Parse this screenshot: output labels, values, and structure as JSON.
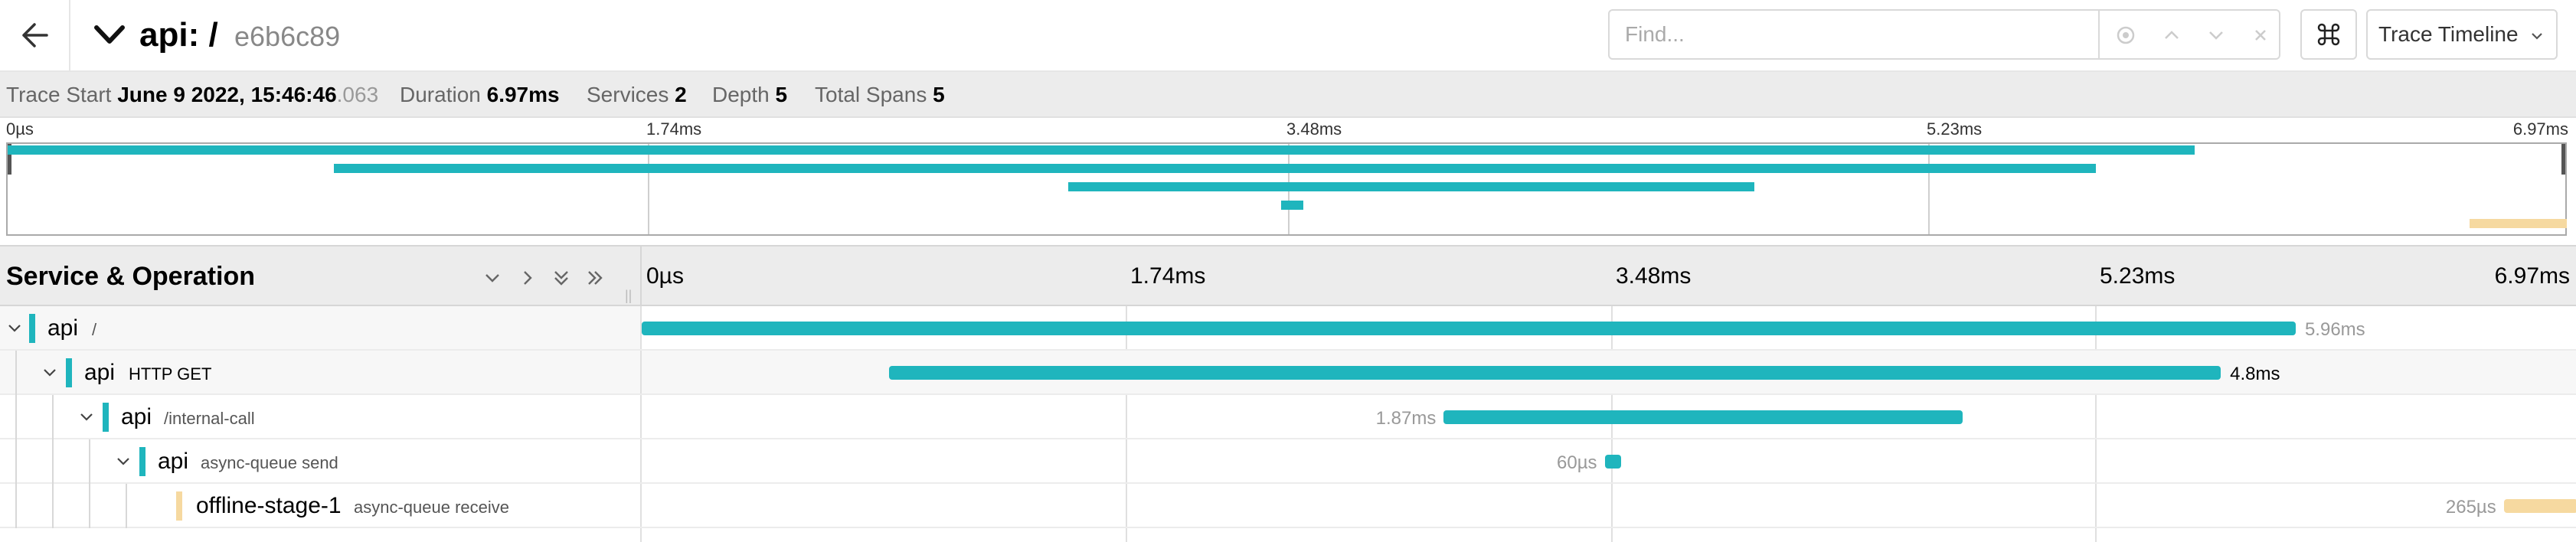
{
  "header": {
    "back_icon": "arrow-left-icon",
    "service": "api:",
    "operation": "/",
    "trace_id": "e6b6c89",
    "find_placeholder": "Find...",
    "view_label": "Trace Timeline"
  },
  "summary": {
    "trace_start_label": "Trace Start",
    "trace_start_date": "June 9 2022, 15:46:46",
    "trace_start_ms": ".063",
    "duration_label": "Duration",
    "duration_value": "6.97ms",
    "services_label": "Services",
    "services_value": "2",
    "depth_label": "Depth",
    "depth_value": "5",
    "total_spans_label": "Total Spans",
    "total_spans_value": "5"
  },
  "minimap": {
    "ticks": [
      "0µs",
      "1.74ms",
      "3.48ms",
      "5.23ms",
      "6.97ms"
    ]
  },
  "timeline": {
    "column_title": "Service & Operation",
    "ticks": [
      "0µs",
      "1.74ms",
      "3.48ms",
      "5.23ms",
      "6.97ms"
    ]
  },
  "colors": {
    "api": "#1fb5bd",
    "offline": "#f6d9a0"
  },
  "spans": [
    {
      "service": "api",
      "operation": "/",
      "duration_label": "5.96ms",
      "start_ms": 0.0,
      "duration_ms": 5.96
    },
    {
      "service": "api",
      "operation": "HTTP GET",
      "duration_label": "4.8ms",
      "start_ms": 0.89,
      "duration_ms": 4.8
    },
    {
      "service": "api",
      "operation": "/internal-call",
      "duration_label": "1.87ms",
      "start_ms": 2.89,
      "duration_ms": 1.87
    },
    {
      "service": "api",
      "operation": "async-queue send",
      "duration_label": "60µs",
      "start_ms": 3.47,
      "duration_ms": 0.06
    },
    {
      "service": "offline-stage-1",
      "operation": "async-queue receive",
      "duration_label": "265µs",
      "start_ms": 6.71,
      "duration_ms": 0.265
    }
  ]
}
